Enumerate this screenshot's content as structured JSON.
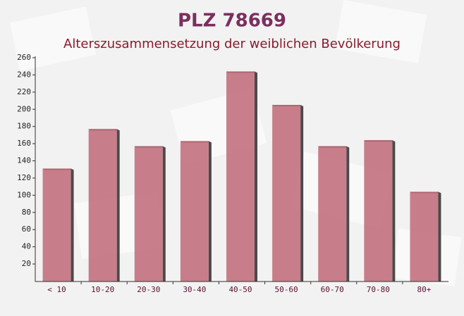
{
  "chart_data": {
    "type": "bar",
    "title": "PLZ 78669",
    "subtitle": "Alterszusammensetzung der weiblichen Bevölkerung",
    "categories": [
      "< 10",
      "10-20",
      "20-30",
      "30-40",
      "40-50",
      "50-60",
      "60-70",
      "70-80",
      "80+"
    ],
    "values": [
      131,
      177,
      157,
      163,
      244,
      205,
      157,
      164,
      104
    ],
    "color": "#c06a78",
    "ylim": [
      0,
      260
    ],
    "yticks": [
      20,
      40,
      60,
      80,
      100,
      120,
      140,
      160,
      180,
      200,
      220,
      240,
      260
    ]
  }
}
